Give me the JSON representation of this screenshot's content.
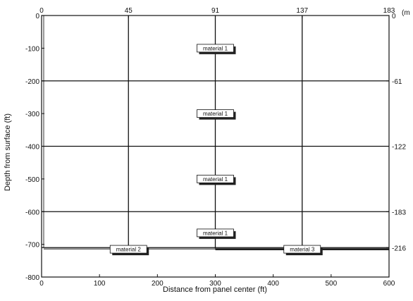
{
  "figure": {
    "xlabel": "Distance from panel center (ft)",
    "ylabel": "Depth from surface (ft)",
    "right_unit": "(m",
    "bottom_ticks": [
      {
        "x": 0,
        "label": "0"
      },
      {
        "x": 100,
        "label": "100"
      },
      {
        "x": 200,
        "label": "200"
      },
      {
        "x": 300,
        "label": "300"
      },
      {
        "x": 400,
        "label": "400"
      },
      {
        "x": 500,
        "label": "500"
      },
      {
        "x": 600,
        "label": "600"
      }
    ],
    "top_ticks": [
      {
        "x": 0,
        "label": "0"
      },
      {
        "x": 150,
        "label": "45"
      },
      {
        "x": 300,
        "label": "91"
      },
      {
        "x": 450,
        "label": "137"
      },
      {
        "x": 600,
        "label": "183"
      }
    ],
    "left_ticks": [
      {
        "y": 0,
        "label": "0"
      },
      {
        "y": -100,
        "label": "-100"
      },
      {
        "y": -200,
        "label": "-200"
      },
      {
        "y": -300,
        "label": "-300"
      },
      {
        "y": -400,
        "label": "-400"
      },
      {
        "y": -500,
        "label": "-500"
      },
      {
        "y": -600,
        "label": "-600"
      },
      {
        "y": -700,
        "label": "-700"
      },
      {
        "y": -800,
        "label": "-800"
      }
    ],
    "right_ticks": [
      {
        "y": 0,
        "label": "0"
      },
      {
        "y": -200,
        "label": "-61"
      },
      {
        "y": -400,
        "label": "-122"
      },
      {
        "y": -600,
        "label": "-183"
      },
      {
        "y": -710,
        "label": "-216"
      }
    ],
    "vlines_x": [
      150,
      300,
      450
    ],
    "hlines_y": [
      -200,
      -400,
      -600
    ],
    "materials": [
      {
        "x": 300,
        "y": -100,
        "label": "material 1"
      },
      {
        "x": 300,
        "y": -300,
        "label": "material 1"
      },
      {
        "x": 300,
        "y": -500,
        "label": "material 1"
      },
      {
        "x": 300,
        "y": -665,
        "label": "material 1"
      },
      {
        "x": 150,
        "y": -715,
        "label": "material 2"
      },
      {
        "x": 450,
        "y": -715,
        "label": "material 3"
      }
    ],
    "xlim": [
      0,
      600
    ],
    "ylim": [
      -800,
      0
    ]
  }
}
